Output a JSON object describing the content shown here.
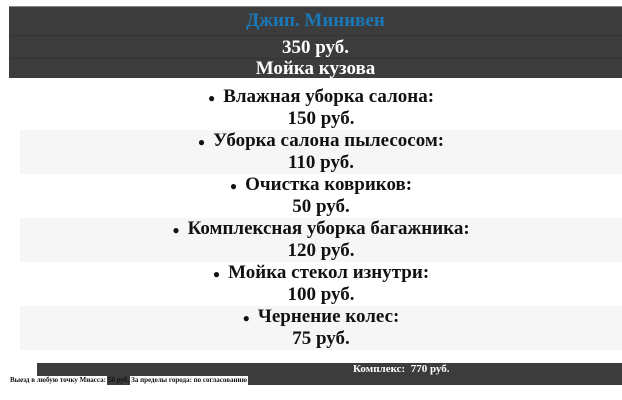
{
  "header": {
    "title": "Джип. Минивен",
    "price": "350 руб.",
    "subtitle": "Мойка кузова"
  },
  "items": [
    {
      "name": "Влажная уборка салона:",
      "price": "150 руб."
    },
    {
      "name": "Уборка салона пылесосом:",
      "price": "110 руб."
    },
    {
      "name": "Очистка ковриков:",
      "price": "50 руб."
    },
    {
      "name": "Комплексная уборка багажника:",
      "price": "120 руб."
    },
    {
      "name": "Мойка стекол изнутри:",
      "price": "100 руб."
    },
    {
      "name": "Чернение колес:",
      "price": "75 руб."
    }
  ],
  "total": "Комплекс:  770 руб.",
  "footer": {
    "visit": "Выезд в любую точку Миасса:",
    "visit_price": "50 руб.",
    "outside": "За пределы города: по согласованию"
  },
  "colors": {
    "title": "#1a78b8",
    "bar": "#3c3c3c"
  }
}
